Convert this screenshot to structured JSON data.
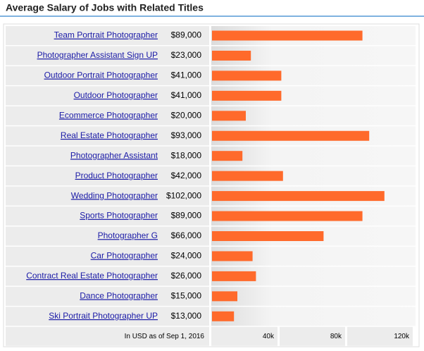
{
  "chart_data": {
    "type": "bar",
    "orientation": "horizontal",
    "title": "Average Salary of Jobs with Related Titles",
    "categories": [
      "Team Portrait Photographer",
      "Photographer Assistant Sign UP",
      "Outdoor Portrait Photographer",
      "Outdoor Photographer",
      "Ecommerce Photographer",
      "Real Estate Photographer",
      "Photographer Assistant",
      "Product Photographer",
      "Wedding Photographer",
      "Sports Photographer",
      "Photographer G",
      "Car Photographer",
      "Contract Real Estate Photographer",
      "Dance Photographer",
      "Ski Portrait Photographer UP"
    ],
    "values": [
      89000,
      23000,
      41000,
      41000,
      20000,
      93000,
      18000,
      42000,
      102000,
      89000,
      66000,
      24000,
      26000,
      15000,
      13000
    ],
    "value_labels": [
      "$89,000",
      "$23,000",
      "$41,000",
      "$41,000",
      "$20,000",
      "$93,000",
      "$18,000",
      "$42,000",
      "$102,000",
      "$89,000",
      "$66,000",
      "$24,000",
      "$26,000",
      "$15,000",
      "$13,000"
    ],
    "color": "#ff6a2b",
    "xlim": [
      0,
      120000
    ],
    "xticks": [
      {
        "value": 40000,
        "label": "40k"
      },
      {
        "value": 80000,
        "label": "80k"
      },
      {
        "value": 120000,
        "label": "120k"
      }
    ],
    "note": "In USD as of Sep 1, 2016"
  }
}
